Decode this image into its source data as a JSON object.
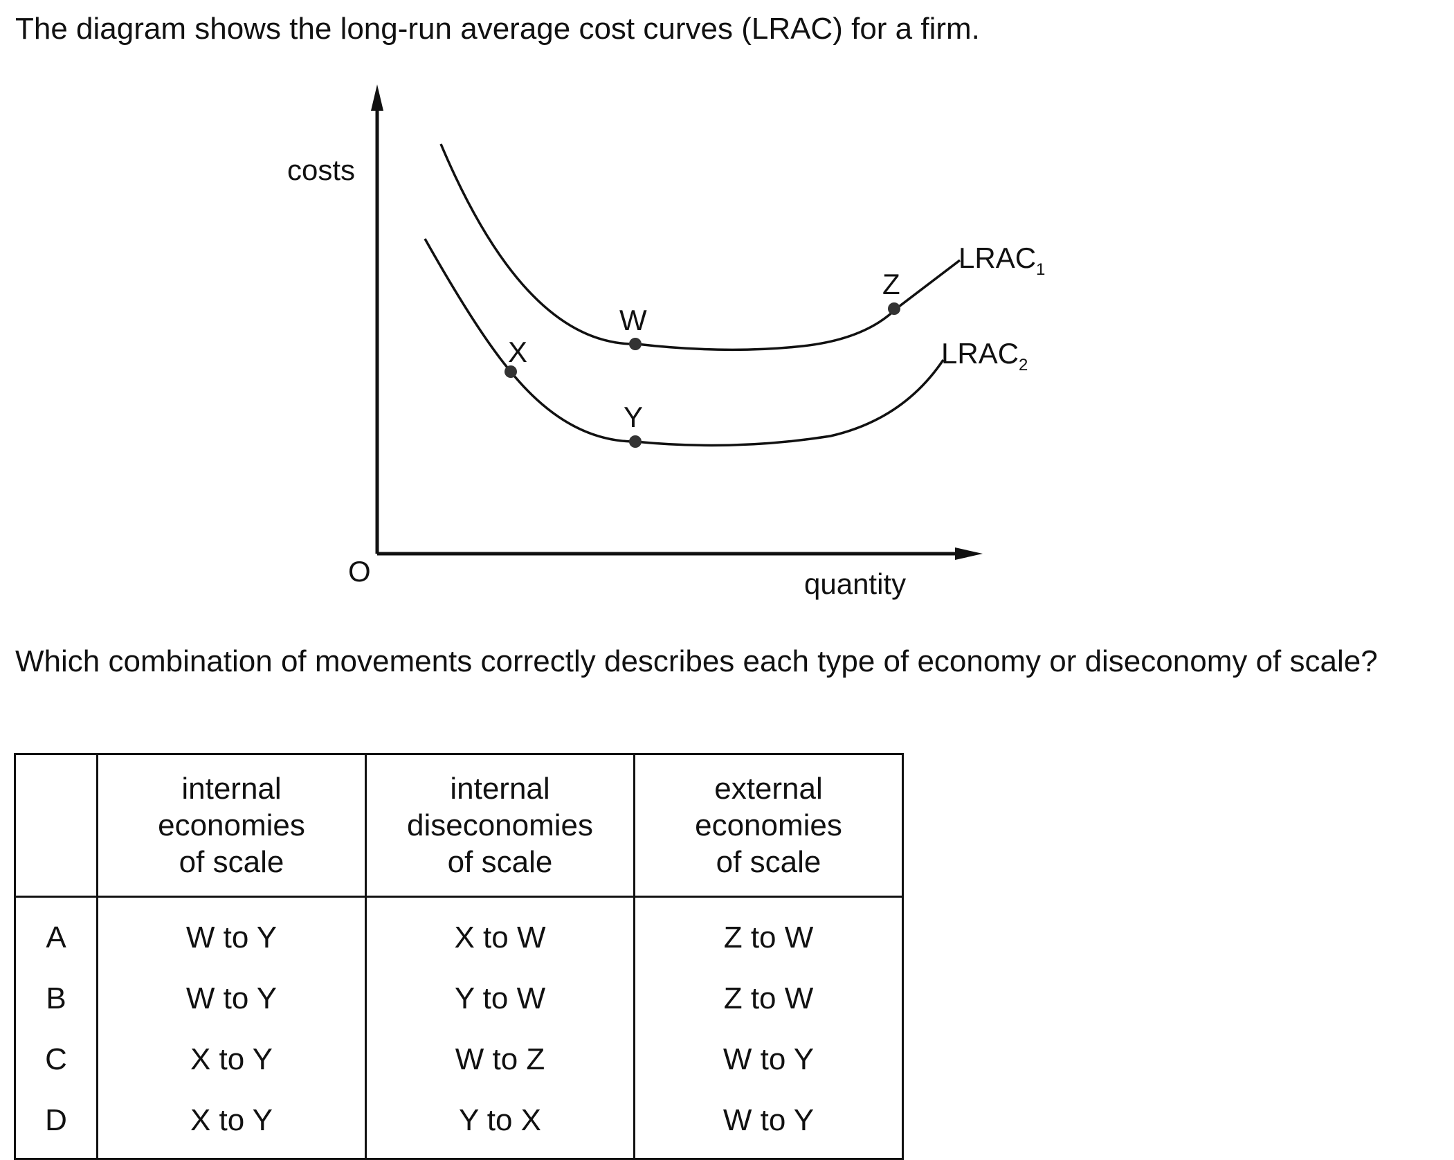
{
  "intro_text": "The diagram shows the long-run average cost curves (LRAC) for a firm.",
  "diagram": {
    "y_axis_label": "costs",
    "x_axis_label": "quantity",
    "origin_label": "O",
    "curves": [
      {
        "name": "LRAC",
        "subscript": "1"
      },
      {
        "name": "LRAC",
        "subscript": "2"
      }
    ],
    "points": {
      "W": "W",
      "X": "X",
      "Y": "Y",
      "Z": "Z"
    }
  },
  "question_text": "Which combination of movements correctly describes each type of economy or diseconomy of scale?",
  "table": {
    "headers": [
      [
        "internal",
        "economies",
        "of scale"
      ],
      [
        "internal",
        "diseconomies",
        "of scale"
      ],
      [
        "external",
        "economies",
        "of scale"
      ]
    ],
    "rows": [
      {
        "key": "A",
        "cells": [
          "W to Y",
          "X to W",
          "Z to W"
        ]
      },
      {
        "key": "B",
        "cells": [
          "W to Y",
          "Y to W",
          "Z to W"
        ]
      },
      {
        "key": "C",
        "cells": [
          "X to Y",
          "W to Z",
          "W to Y"
        ]
      },
      {
        "key": "D",
        "cells": [
          "X to Y",
          "Y to X",
          "W to Y"
        ]
      }
    ]
  }
}
